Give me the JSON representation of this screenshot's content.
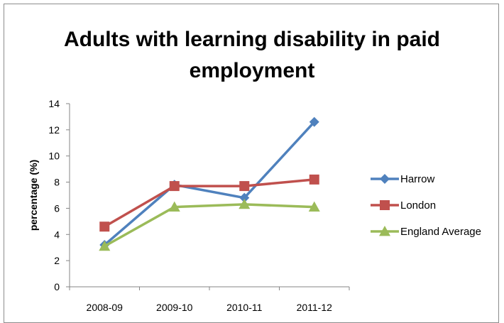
{
  "chart_data": {
    "type": "line",
    "title_lines": [
      "Adults with learning disability in paid",
      "employment"
    ],
    "title": "Adults with learning disability in paid employment",
    "xlabel": "",
    "ylabel": "percentage (%)",
    "categories": [
      "2008-09",
      "2009-10",
      "2010-11",
      "2011-12"
    ],
    "ylim": [
      0,
      14
    ],
    "yticks": [
      0,
      2,
      4,
      6,
      8,
      10,
      12,
      14
    ],
    "grid": false,
    "legend_position": "right",
    "series": [
      {
        "name": "Harrow",
        "values": [
          3.2,
          7.8,
          6.8,
          12.6
        ],
        "color": "#4f81bd",
        "marker": "diamond"
      },
      {
        "name": "London",
        "values": [
          4.6,
          7.7,
          7.7,
          8.2
        ],
        "color": "#c0504d",
        "marker": "square"
      },
      {
        "name": "England Average",
        "values": [
          3.1,
          6.1,
          6.3,
          6.1
        ],
        "color": "#9bbb59",
        "marker": "triangle"
      }
    ]
  }
}
